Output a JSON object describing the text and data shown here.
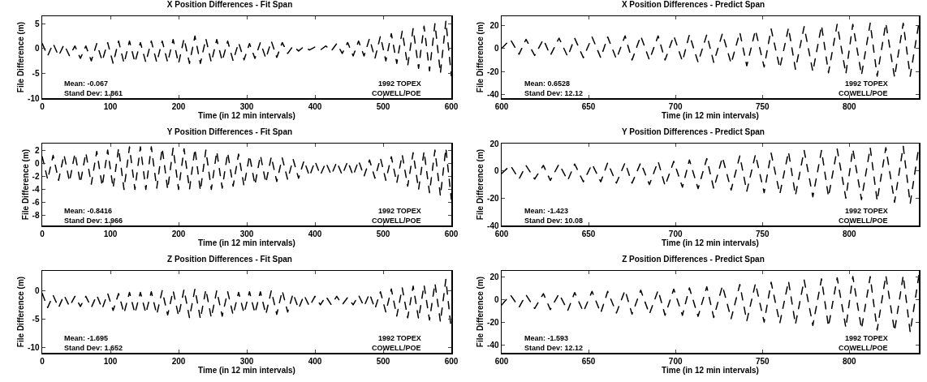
{
  "chart_data": [
    {
      "type": "line",
      "title": "X Position Differences - Fit Span",
      "xlabel": "Time (in 12 min intervals)",
      "ylabel": "File Difference (m)",
      "xlim": [
        0,
        600
      ],
      "xticks": [
        0,
        100,
        200,
        300,
        400,
        500,
        600
      ],
      "ylim": [
        -10,
        6.5
      ],
      "yticks": [
        -10,
        -5,
        0,
        5
      ],
      "grid": false,
      "line_style": "dashed",
      "x": [
        0,
        8,
        16,
        24,
        32,
        40,
        48,
        56,
        64,
        72,
        80,
        88,
        96,
        104,
        112,
        120,
        128,
        136,
        144,
        152,
        160,
        168,
        176,
        184,
        192,
        200,
        208,
        216,
        224,
        232,
        240,
        248,
        256,
        264,
        272,
        280,
        288,
        296,
        304,
        312,
        320,
        328,
        336,
        344,
        352,
        360,
        368,
        376,
        384,
        392,
        400,
        408,
        416,
        424,
        432,
        440,
        448,
        456,
        464,
        472,
        480,
        488,
        496,
        504,
        512,
        520,
        528,
        536,
        544,
        552,
        560,
        568,
        576,
        584,
        592,
        600
      ],
      "series": [
        {
          "color": "#000000",
          "values": [
            1,
            -1.5,
            1,
            -1.5,
            0.8,
            -1.5,
            0.5,
            -2,
            0.5,
            -2.5,
            1,
            -2.5,
            1.2,
            -3,
            1.5,
            -3,
            1.5,
            -2.8,
            1.2,
            -2.8,
            1.5,
            -2.8,
            1.5,
            -2.8,
            1.8,
            -3,
            2,
            -3,
            2.5,
            -3,
            2,
            -2.8,
            1.8,
            -2.5,
            1.5,
            -2.5,
            1.2,
            -2.3,
            1,
            -2,
            1.2,
            -2,
            1.5,
            -1.8,
            1.2,
            -1,
            0.5,
            -0.5,
            0.4,
            -0.3,
            0.3,
            -0.3,
            0.5,
            -0.5,
            1,
            -1,
            1.2,
            -1.5,
            1.5,
            -1.5,
            2,
            -2,
            2.5,
            -2.5,
            3,
            -3,
            3.5,
            -3.5,
            4,
            -4,
            4.5,
            -4.5,
            5,
            -5,
            5.5,
            -5.5
          ]
        }
      ],
      "annotations": [
        "Mean: -0.067",
        "Stand Dev: 1.861",
        "1992 TOPEX",
        "COWELL/POE"
      ]
    },
    {
      "type": "line",
      "title": "X Position Differences - Predict Span",
      "xlabel": "Time (in 12 min intervals)",
      "ylabel": "File Difference (m)",
      "xlim": [
        600,
        840
      ],
      "xticks": [
        600,
        650,
        700,
        750,
        800
      ],
      "ylim": [
        -43,
        28
      ],
      "yticks": [
        -40,
        -20,
        0,
        20
      ],
      "grid": false,
      "line_style": "dashed",
      "x": [
        600,
        605,
        610,
        614,
        619,
        624,
        628,
        633,
        638,
        642,
        647,
        652,
        657,
        661,
        666,
        671,
        675,
        680,
        685,
        690,
        694,
        699,
        704,
        708,
        713,
        718,
        722,
        727,
        732,
        737,
        741,
        746,
        751,
        755,
        760,
        765,
        769,
        774,
        779,
        784,
        788,
        793,
        798,
        802,
        807,
        812,
        816,
        821,
        826,
        831,
        835,
        840
      ],
      "series": [
        {
          "color": "#000000",
          "values": [
            0,
            8,
            -5,
            8,
            -6,
            8,
            -6,
            9,
            -7,
            9,
            -8,
            10,
            -8,
            10,
            -9,
            11,
            -10,
            11,
            -10,
            11,
            -10,
            11,
            -11,
            12,
            -12,
            12,
            -12,
            13,
            -13,
            14,
            -15,
            16,
            -16,
            17,
            -17,
            18,
            -18,
            19,
            -20,
            20,
            -21,
            21,
            -22,
            21,
            -23,
            22,
            -24,
            22,
            -25,
            22,
            -24,
            22
          ]
        }
      ],
      "annotations": [
        "Mean: 0.6528",
        "Stand Dev: 12.12",
        "1992 TOPEX",
        "COWELL/POE"
      ]
    },
    {
      "type": "line",
      "title": "Y Position Differences - Fit Span",
      "xlabel": "Time (in 12 min intervals)",
      "ylabel": "File Difference (m)",
      "xlim": [
        0,
        600
      ],
      "xticks": [
        0,
        100,
        200,
        300,
        400,
        500,
        600
      ],
      "ylim": [
        -9.5,
        3
      ],
      "yticks": [
        -8,
        -6,
        -4,
        -2,
        0,
        2
      ],
      "grid": false,
      "line_style": "dashed",
      "x": [
        0,
        8,
        16,
        24,
        32,
        40,
        48,
        56,
        64,
        72,
        80,
        88,
        96,
        104,
        112,
        120,
        128,
        136,
        144,
        152,
        160,
        168,
        176,
        184,
        192,
        200,
        208,
        216,
        224,
        232,
        240,
        248,
        256,
        264,
        272,
        280,
        288,
        296,
        304,
        312,
        320,
        328,
        336,
        344,
        352,
        360,
        368,
        376,
        384,
        392,
        400,
        408,
        416,
        424,
        432,
        440,
        448,
        456,
        464,
        472,
        480,
        488,
        496,
        504,
        512,
        520,
        528,
        536,
        544,
        552,
        560,
        568,
        576,
        584,
        592,
        600
      ],
      "series": [
        {
          "color": "#000000",
          "values": [
            1,
            -2.5,
            1.2,
            -2.6,
            1.3,
            -2.8,
            1.5,
            -3,
            1.6,
            -3.2,
            1.8,
            -3.5,
            2,
            -3.8,
            2.3,
            -4,
            2.5,
            -4,
            2.5,
            -4,
            2.5,
            -3.8,
            2.3,
            -4,
            2.3,
            -4,
            2.2,
            -4,
            2.2,
            -4.2,
            2,
            -4,
            1.8,
            -3.8,
            1.6,
            -3.5,
            1.4,
            -3.5,
            1.2,
            -3.3,
            1.2,
            -3,
            1,
            -2.8,
            0.8,
            -2.5,
            0.6,
            -2.3,
            0.4,
            -2,
            0.3,
            -1.8,
            0.1,
            -1.8,
            0.2,
            -1.8,
            0.3,
            -1.9,
            0.4,
            -2,
            0.5,
            -2.3,
            0.8,
            -2.6,
            1,
            -3,
            1.3,
            -3.5,
            1.6,
            -4,
            1.8,
            -4.5,
            2,
            -5,
            2.3,
            -5.5
          ]
        }
      ],
      "annotations": [
        "Mean: -0.8416",
        "Stand Dev: 1.966",
        "1992 TOPEX",
        "COWELL/POE"
      ]
    },
    {
      "type": "line",
      "title": "Y Position Differences - Predict Span",
      "xlabel": "Time (in 12 min intervals)",
      "ylabel": "File Difference (m)",
      "xlim": [
        600,
        840
      ],
      "xticks": [
        600,
        650,
        700,
        750,
        800
      ],
      "ylim": [
        -40,
        20
      ],
      "yticks": [
        -40,
        -20,
        0,
        20
      ],
      "grid": false,
      "line_style": "dashed",
      "x": [
        600,
        605,
        610,
        614,
        619,
        624,
        628,
        633,
        638,
        642,
        647,
        652,
        657,
        661,
        666,
        671,
        675,
        680,
        685,
        690,
        694,
        699,
        704,
        708,
        713,
        718,
        722,
        727,
        732,
        737,
        741,
        746,
        751,
        755,
        760,
        765,
        769,
        774,
        779,
        784,
        788,
        793,
        798,
        802,
        807,
        812,
        816,
        821,
        826,
        831,
        835,
        840
      ],
      "series": [
        {
          "color": "#000000",
          "values": [
            -2,
            4,
            -6,
            4,
            -6,
            4,
            -7,
            5,
            -7,
            5,
            -8,
            5,
            -8,
            6,
            -9,
            6,
            -9,
            6,
            -10,
            7,
            -11,
            7,
            -12,
            8,
            -13,
            9,
            -13,
            10,
            -14,
            11,
            -15,
            12,
            -16,
            13,
            -17,
            14,
            -18,
            15,
            -19,
            15,
            -19,
            16,
            -20,
            16,
            -21,
            17,
            -22,
            17,
            -23,
            18,
            -24,
            18
          ]
        }
      ],
      "annotations": [
        "Mean: -1.423",
        "Stand Dev: 10.08",
        "1992 TOPEX",
        "COWELL/POE"
      ]
    },
    {
      "type": "line",
      "title": "Z Position Differences - Fit Span",
      "xlabel": "Time (in 12 min intervals)",
      "ylabel": "File Difference (m)",
      "xlim": [
        0,
        600
      ],
      "xticks": [
        0,
        100,
        200,
        300,
        400,
        500,
        600
      ],
      "ylim": [
        -11,
        3.5
      ],
      "yticks": [
        -10,
        -5,
        0
      ],
      "grid": false,
      "line_style": "dashed",
      "x": [
        0,
        8,
        16,
        24,
        32,
        40,
        48,
        56,
        64,
        72,
        80,
        88,
        96,
        104,
        112,
        120,
        128,
        136,
        144,
        152,
        160,
        168,
        176,
        184,
        192,
        200,
        208,
        216,
        224,
        232,
        240,
        248,
        256,
        264,
        272,
        280,
        288,
        296,
        304,
        312,
        320,
        328,
        336,
        344,
        352,
        360,
        368,
        376,
        384,
        392,
        400,
        408,
        416,
        424,
        432,
        440,
        448,
        456,
        464,
        472,
        480,
        488,
        496,
        504,
        512,
        520,
        528,
        536,
        544,
        552,
        560,
        568,
        576,
        584,
        592,
        600
      ],
      "series": [
        {
          "color": "#000000",
          "values": [
            -0.5,
            -3,
            -0.8,
            -3,
            -0.8,
            -2.8,
            -1,
            -2.8,
            -1,
            -3,
            -0.8,
            -3.2,
            -0.5,
            -3.5,
            -0.5,
            -4,
            -0.3,
            -4,
            -0.3,
            -4,
            -0.2,
            -4.2,
            0,
            -4.3,
            0,
            -4.5,
            0.2,
            -4.8,
            0.3,
            -5,
            0.2,
            -4.8,
            0,
            -4.5,
            -0.2,
            -4.3,
            -0.3,
            -4,
            -0.2,
            -4,
            -0.2,
            -4.2,
            0,
            -4.2,
            0,
            -3.8,
            -0.5,
            -3.2,
            -0.8,
            -2.8,
            -1,
            -2.5,
            -1,
            -2.5,
            -1,
            -2.5,
            -1.2,
            -2.5,
            -0.8,
            -2.8,
            -0.5,
            -3.2,
            -0.2,
            -3.8,
            0.3,
            -4.5,
            0.5,
            -4.8,
            0.8,
            -5,
            1,
            -5.2,
            1.3,
            -5.5,
            2,
            -7
          ]
        }
      ],
      "annotations": [
        "Mean: -1.695",
        "Stand Dev: 1.652",
        "1992 TOPEX",
        "COWELL/POE"
      ]
    },
    {
      "type": "line",
      "title": "Z Position Differences - Predict Span",
      "xlabel": "Time (in 12 min intervals)",
      "ylabel": "File Difference (m)",
      "xlim": [
        600,
        840
      ],
      "xticks": [
        600,
        650,
        700,
        750,
        800
      ],
      "ylim": [
        -47,
        25
      ],
      "yticks": [
        -40,
        -20,
        0,
        20
      ],
      "grid": false,
      "line_style": "dashed",
      "x": [
        600,
        605,
        610,
        614,
        619,
        624,
        628,
        633,
        638,
        642,
        647,
        652,
        657,
        661,
        666,
        671,
        675,
        680,
        685,
        690,
        694,
        699,
        704,
        708,
        713,
        718,
        722,
        727,
        732,
        737,
        741,
        746,
        751,
        755,
        760,
        765,
        769,
        774,
        779,
        784,
        788,
        793,
        798,
        802,
        807,
        812,
        816,
        821,
        826,
        831,
        835,
        840
      ],
      "series": [
        {
          "color": "#000000",
          "values": [
            -5,
            4,
            -7,
            4,
            -8,
            5,
            -9,
            5,
            -10,
            6,
            -11,
            7,
            -12,
            7,
            -12,
            8,
            -13,
            8,
            -13,
            8,
            -14,
            9,
            -14,
            10,
            -15,
            11,
            -16,
            12,
            -17,
            13,
            -19,
            14,
            -20,
            15,
            -21,
            16,
            -22,
            17,
            -23,
            18,
            -24,
            19,
            -25,
            20,
            -26,
            20,
            -27,
            21,
            -28,
            21,
            -29,
            21
          ]
        }
      ],
      "annotations": [
        "Mean: -1.593",
        "Stand Dev: 12.12",
        "1992 TOPEX",
        "COWELL/POE"
      ]
    }
  ]
}
